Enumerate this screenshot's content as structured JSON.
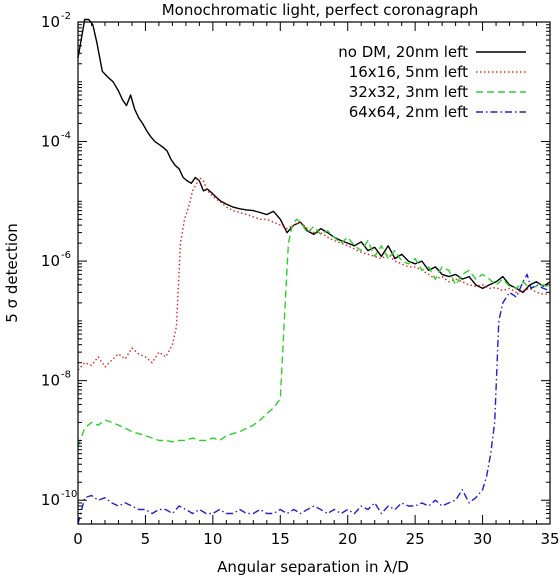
{
  "chart_data": {
    "type": "line",
    "title": "Monochromatic light,  perfect coronagraph",
    "xlabel": "Angular separation in λ/D",
    "ylabel": "5 σ detection",
    "xlim": [
      0,
      35
    ],
    "ylim": [
      4e-11,
      0.01
    ],
    "yscale": "log",
    "xticks": [
      0,
      5,
      10,
      15,
      20,
      25,
      30,
      35
    ],
    "xtick_labels": [
      "0",
      "5",
      "10",
      "15",
      "20",
      "25",
      "30",
      "35"
    ],
    "yticks": [
      1e-10,
      1e-08,
      1e-06,
      0.0001,
      0.01
    ],
    "ytick_labels": [
      {
        "base": "10",
        "exp": "-10"
      },
      {
        "base": "10",
        "exp": "-8"
      },
      {
        "base": "10",
        "exp": "-6"
      },
      {
        "base": "10",
        "exp": "-4"
      },
      {
        "base": "10",
        "exp": "-2"
      }
    ],
    "legend_position": "top-right",
    "series": [
      {
        "name": "no DM, 20nm left",
        "color": "#000000",
        "dash": "solid",
        "x": [
          0,
          0.5,
          0.8,
          1.1,
          1.4,
          1.8,
          2.2,
          2.6,
          3.0,
          3.3,
          3.6,
          3.9,
          4.2,
          4.5,
          4.8,
          5.1,
          5.4,
          5.7,
          6.0,
          6.3,
          6.6,
          6.9,
          7.2,
          7.5,
          7.8,
          8.1,
          8.4,
          8.7,
          9.0,
          9.3,
          9.6,
          9.9,
          10.2,
          10.6,
          11.0,
          11.5,
          12.0,
          12.5,
          13.0,
          13.5,
          14.0,
          14.5,
          15.0,
          15.5,
          16.0,
          16.5,
          17.0,
          17.5,
          18.0,
          18.5,
          19.0,
          19.5,
          20.0,
          20.5,
          21.0,
          21.5,
          22.0,
          22.5,
          23.0,
          23.5,
          24.0,
          24.5,
          25.0,
          25.5,
          26.0,
          26.5,
          27.0,
          27.5,
          28.0,
          28.5,
          29.0,
          29.5,
          30.0,
          30.5,
          31.0,
          31.5,
          32.0,
          32.5,
          33.0,
          33.5,
          34.0,
          34.5,
          35.0
        ],
        "y": [
          0.0025,
          0.011,
          0.011,
          0.009,
          0.0045,
          0.0015,
          0.0012,
          0.001,
          0.0007,
          0.0005,
          0.0004,
          0.0006,
          0.00035,
          0.00025,
          0.0002,
          0.00015,
          0.00012,
          0.0001,
          9e-05,
          8e-05,
          7e-05,
          5e-05,
          4e-05,
          3.5e-05,
          2.5e-05,
          2.2e-05,
          2e-05,
          2.5e-05,
          2.2e-05,
          1.5e-05,
          1.6e-05,
          1.4e-05,
          1.2e-05,
          1e-05,
          9e-06,
          8e-06,
          7.5e-06,
          7.2e-06,
          7e-06,
          6.5e-06,
          6e-06,
          6.8e-06,
          5e-06,
          3e-06,
          4e-06,
          4.5e-06,
          3.2e-06,
          2.8e-06,
          3.5e-06,
          3e-06,
          2.5e-06,
          2.2e-06,
          2e-06,
          1.8e-06,
          2.1e-06,
          1.5e-06,
          1.7e-06,
          1.2e-06,
          1.8e-06,
          1.1e-06,
          1.3e-06,
          1e-06,
          9e-07,
          1e-06,
          7e-07,
          8e-07,
          6e-07,
          5.5e-07,
          6e-07,
          5e-07,
          5.5e-07,
          4e-07,
          3.5e-07,
          4e-07,
          4.5e-07,
          5.5e-07,
          4e-07,
          3.5e-07,
          3e-07,
          4e-07,
          4.5e-07,
          3.8e-07,
          4.5e-07
        ]
      },
      {
        "name": "16x16, 5nm left",
        "color": "#e8231f",
        "dash": "dotted",
        "x": [
          0,
          0.5,
          1.0,
          1.5,
          2.0,
          2.5,
          3.0,
          3.5,
          4.0,
          4.5,
          5.0,
          5.5,
          6.0,
          6.5,
          7.0,
          7.3,
          7.6,
          7.9,
          8.2,
          8.5,
          8.8,
          9.0,
          9.3,
          9.6,
          10.0,
          10.5,
          11.0,
          11.5,
          12.0,
          12.5,
          13.0,
          13.5,
          14.0,
          14.5,
          15.0,
          15.5,
          16.0,
          16.5,
          17.0,
          17.5,
          18.0,
          18.5,
          19.0,
          19.5,
          20.0,
          20.5,
          21.0,
          21.5,
          22.0,
          22.5,
          23.0,
          23.5,
          24.0,
          24.5,
          25.0,
          25.5,
          26.0,
          26.5,
          27.0,
          27.5,
          28.0,
          28.5,
          29.0,
          29.5,
          30.0,
          30.5,
          31.0,
          31.5,
          32.0,
          32.5,
          33.0,
          33.5,
          34.0,
          34.5,
          35.0
        ],
        "y": [
          1.5e-08,
          2e-08,
          1.8e-08,
          2.5e-08,
          1.7e-08,
          2.2e-08,
          2.8e-08,
          2.3e-08,
          3.5e-08,
          2.8e-08,
          2.5e-08,
          2e-08,
          3e-08,
          2.5e-08,
          4e-08,
          8e-08,
          2e-06,
          5e-06,
          8e-06,
          1.5e-05,
          2e-05,
          2.5e-05,
          2.2e-05,
          1.5e-05,
          1.2e-05,
          1e-05,
          8e-06,
          7e-06,
          6.5e-06,
          6e-06,
          5.5e-06,
          5e-06,
          5e-06,
          4.5e-06,
          4e-06,
          3.5e-06,
          4e-06,
          4.5e-06,
          3.5e-06,
          3e-06,
          3e-06,
          2.5e-06,
          2.2e-06,
          2e-06,
          1.8e-06,
          1.6e-06,
          1.4e-06,
          1.3e-06,
          1.2e-06,
          1.1e-06,
          1.3e-06,
          1e-06,
          9e-07,
          8e-07,
          8e-07,
          7e-07,
          6e-07,
          5e-07,
          5.5e-07,
          4.5e-07,
          5e-07,
          4.5e-07,
          4e-07,
          3.8e-07,
          4e-07,
          3.5e-07,
          3.6e-07,
          3.2e-07,
          3.5e-07,
          3e-07,
          3.2e-07,
          3.5e-07,
          3e-07,
          2.8e-07,
          2.8e-07
        ]
      },
      {
        "name": "32x32, 3nm left",
        "color": "#2bd12b",
        "dash": "dashed",
        "x": [
          0,
          0.5,
          1.0,
          1.5,
          2.0,
          2.5,
          3.0,
          3.5,
          4.0,
          4.5,
          5.0,
          5.5,
          6.0,
          6.5,
          7.0,
          7.5,
          8.0,
          8.5,
          9.0,
          9.5,
          10.0,
          10.5,
          11.0,
          11.5,
          12.0,
          12.5,
          13.0,
          13.5,
          14.0,
          14.5,
          15.0,
          15.3,
          15.6,
          15.9,
          16.2,
          16.5,
          17.0,
          17.5,
          18.0,
          18.5,
          19.0,
          19.5,
          20.0,
          20.5,
          21.0,
          21.5,
          22.0,
          22.5,
          23.0,
          23.5,
          24.0,
          24.5,
          25.0,
          25.5,
          26.0,
          26.5,
          27.0,
          27.5,
          28.0,
          28.5,
          29.0,
          29.5,
          30.0,
          30.5,
          31.0,
          31.5,
          32.0,
          32.5,
          33.0,
          33.5,
          34.0,
          34.5,
          35.0
        ],
        "y": [
          8e-10,
          1.6e-09,
          2e-09,
          1.8e-09,
          2.2e-09,
          2e-09,
          1.8e-09,
          1.6e-09,
          1.4e-09,
          1.3e-09,
          1.2e-09,
          1.1e-09,
          1e-09,
          1e-09,
          9.5e-10,
          1e-09,
          1e-09,
          1.1e-09,
          1e-09,
          1e-09,
          1.1e-09,
          1e-09,
          1.2e-09,
          1.3e-09,
          1.4e-09,
          1.6e-09,
          1.8e-09,
          2.2e-09,
          2.8e-09,
          3.5e-09,
          5e-09,
          1e-07,
          2e-06,
          4e-06,
          5e-06,
          4.5e-06,
          3e-06,
          3.8e-06,
          2.8e-06,
          3.2e-06,
          2.5e-06,
          2e-06,
          2.5e-06,
          1.8e-06,
          1.5e-06,
          2.2e-06,
          1.2e-06,
          1.8e-06,
          1.1e-06,
          1.5e-06,
          1e-06,
          9e-07,
          1.1e-06,
          7e-07,
          8e-07,
          5e-07,
          8e-07,
          7e-07,
          4e-07,
          6e-07,
          7e-07,
          5e-07,
          6e-07,
          5e-07,
          4e-07,
          5e-07,
          3.8e-07,
          3.5e-07,
          4.5e-07,
          3.5e-07,
          3.8e-07,
          4e-07,
          3.6e-07
        ]
      },
      {
        "name": "64x64, 2nm left",
        "color": "#1f1fd4",
        "dash": "dashdot",
        "x": [
          0,
          0.5,
          1.0,
          1.5,
          2.0,
          2.5,
          3.0,
          3.5,
          4.0,
          4.5,
          5.0,
          5.5,
          6.0,
          6.5,
          7.0,
          7.5,
          8.0,
          8.5,
          9.0,
          9.5,
          10.0,
          10.5,
          11.0,
          11.5,
          12.0,
          12.5,
          13.0,
          13.5,
          14.0,
          14.5,
          15.0,
          15.5,
          16.0,
          16.5,
          17.0,
          17.5,
          18.0,
          18.5,
          19.0,
          19.5,
          20.0,
          20.5,
          21.0,
          21.5,
          22.0,
          22.5,
          23.0,
          23.5,
          24.0,
          24.5,
          25.0,
          25.5,
          26.0,
          26.5,
          27.0,
          27.5,
          28.0,
          28.5,
          29.0,
          29.5,
          30.0,
          30.3,
          30.6,
          30.9,
          31.2,
          31.5,
          32.0,
          32.5,
          33.0,
          33.3,
          33.6,
          34.0,
          34.5,
          35.0
        ],
        "y": [
          4e-11,
          1.1e-10,
          1.2e-10,
          1e-10,
          1.1e-10,
          9e-11,
          8e-11,
          9e-11,
          8e-11,
          7e-11,
          7e-11,
          6e-11,
          7e-11,
          7e-11,
          6e-11,
          8e-11,
          7e-11,
          6e-11,
          7e-11,
          6e-11,
          6e-11,
          7e-11,
          6e-11,
          6e-11,
          7e-11,
          6e-11,
          6e-11,
          7e-11,
          6e-11,
          6e-11,
          7e-11,
          6e-11,
          7e-11,
          6e-11,
          7e-11,
          8e-11,
          7e-11,
          6e-11,
          7e-11,
          6e-11,
          7e-11,
          6e-11,
          8e-11,
          7e-11,
          9e-11,
          6e-11,
          8e-11,
          7e-11,
          9e-11,
          8e-11,
          8e-11,
          9e-11,
          8e-11,
          1e-10,
          8e-11,
          9e-11,
          1e-10,
          1.5e-10,
          9e-11,
          1.1e-10,
          1.5e-10,
          2.5e-10,
          6e-10,
          2e-09,
          1e-07,
          2e-07,
          3e-07,
          2.5e-07,
          4.5e-07,
          6e-07,
          3.5e-07,
          4e-07,
          3.5e-07,
          3.2e-07
        ]
      }
    ]
  }
}
